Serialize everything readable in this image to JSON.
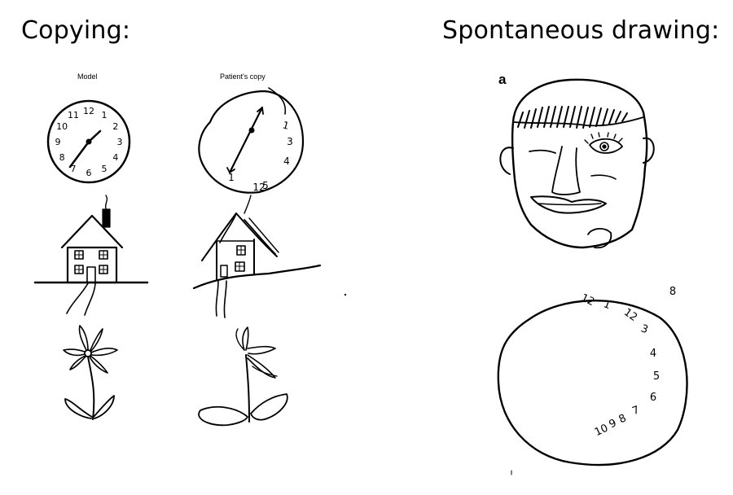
{
  "headings": {
    "copying": "Copying:",
    "spontaneous": "Spontaneous drawing:"
  },
  "columns": {
    "model": "Model",
    "patient": "Patient's copy"
  },
  "panel_label": "a",
  "model_clock_numbers": [
    "12",
    "1",
    "2",
    "3",
    "4",
    "5",
    "6",
    "7",
    "8",
    "9",
    "10",
    "11"
  ],
  "patient_clock_numbers": [
    "1",
    "3",
    "4",
    "5",
    "1",
    "12"
  ],
  "spontaneous_clock_numbers": [
    "12",
    "1",
    "12",
    "3",
    "4",
    "5",
    "6",
    "7",
    "8",
    "9",
    "10",
    "8"
  ]
}
